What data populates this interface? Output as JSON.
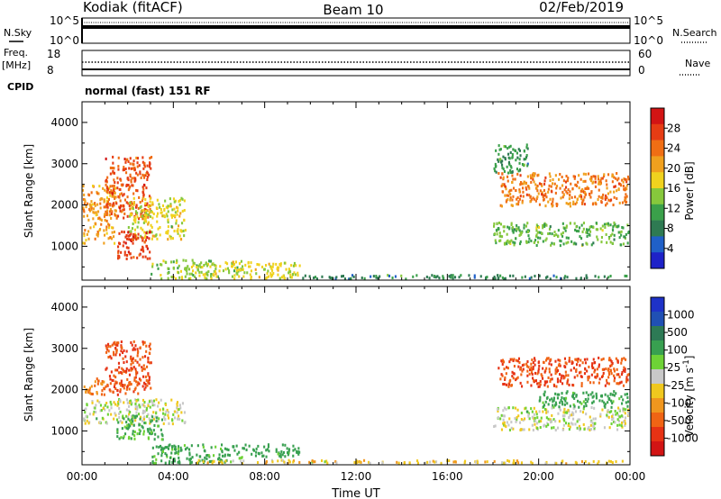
{
  "header": {
    "station": "Kodiak (fitACF)",
    "beam": "Beam 10",
    "date": "02/Feb/2019"
  },
  "noise_panel": {
    "left_label": "N.Sky",
    "right_label": "N.Search",
    "ticks_left": [
      "10^5",
      "10^0"
    ],
    "ticks_right": [
      "10^5",
      "10^0"
    ]
  },
  "freq_panel": {
    "left_label_line1": "Freq.",
    "left_label_line2": "[MHz]",
    "ticks_left": [
      "18",
      "8"
    ],
    "right_label": "Nave",
    "ticks_right": [
      "60",
      "0"
    ],
    "cpid_label": "CPID",
    "cpid_text": "normal (fast) 151 RF"
  },
  "colors": {
    "power": [
      "#1e22c8",
      "#2060c8",
      "#2e7a52",
      "#3aa04a",
      "#86c83c",
      "#f0d21e",
      "#f0a01e",
      "#f06e14",
      "#e63c14",
      "#d21414"
    ],
    "velocity": [
      "#1e32c8",
      "#2050b4",
      "#2d7a55",
      "#38a050",
      "#6ed236",
      "#c8c8c8",
      "#f0c81e",
      "#f0961e",
      "#f06414",
      "#e63214",
      "#d21414"
    ]
  },
  "chart_data": [
    {
      "type": "heatmap",
      "name": "power",
      "ylabel": "Slant Range [km]",
      "ylim": [
        180,
        4500
      ],
      "y_ticks": [
        "1000",
        "2000",
        "3000",
        "4000"
      ],
      "x_ticks": [
        "00:00",
        "04:00",
        "08:00",
        "12:00",
        "16:00",
        "20:00",
        "00:00"
      ],
      "xlim_hours": [
        0,
        24
      ],
      "colorbar_label": "Power [dB]",
      "colorbar_ticks": [
        "28",
        "24",
        "20",
        "16",
        "12",
        "8",
        "4"
      ],
      "colorbar_range": [
        0,
        30
      ],
      "features": [
        {
          "t": [
            0.0,
            1.5
          ],
          "r": [
            1100,
            2500
          ],
          "value": 20
        },
        {
          "t": [
            1.0,
            3.0
          ],
          "r": [
            1700,
            3200
          ],
          "value": 24
        },
        {
          "t": [
            2.0,
            4.5
          ],
          "r": [
            1200,
            2200
          ],
          "value": 16
        },
        {
          "t": [
            1.5,
            3.0
          ],
          "r": [
            700,
            1400
          ],
          "value": 26
        },
        {
          "t": [
            3.0,
            7.0
          ],
          "r": [
            200,
            700
          ],
          "value": 14
        },
        {
          "t": [
            6.5,
            9.5
          ],
          "r": [
            250,
            650
          ],
          "value": 16
        },
        {
          "t": [
            9.5,
            24.0
          ],
          "r": [
            180,
            330
          ],
          "value": 8
        },
        {
          "t": [
            18.2,
            24.0
          ],
          "r": [
            2000,
            2800
          ],
          "value": 22
        },
        {
          "t": [
            18.0,
            24.0
          ],
          "r": [
            1050,
            1600
          ],
          "value": 12
        },
        {
          "t": [
            18.0,
            19.5
          ],
          "r": [
            2800,
            3500
          ],
          "value": 10
        }
      ]
    },
    {
      "type": "heatmap",
      "name": "velocity",
      "ylabel": "Slant Range [km]",
      "ylim": [
        180,
        4500
      ],
      "y_ticks": [
        "1000",
        "2000",
        "3000",
        "4000"
      ],
      "x_ticks": [
        "00:00",
        "04:00",
        "08:00",
        "12:00",
        "16:00",
        "20:00",
        "00:00"
      ],
      "xlim_hours": [
        0,
        24
      ],
      "xlabel": "Time UT",
      "colorbar_label": "Velocity [m s^-1]",
      "colorbar_ticks": [
        "1000",
        "500",
        "100",
        "25",
        "-25",
        "-100",
        "-500",
        "-1000"
      ],
      "features": [
        {
          "t": [
            1.0,
            3.0
          ],
          "r": [
            1900,
            3200
          ],
          "value": -500
        },
        {
          "t": [
            0.0,
            1.0
          ],
          "r": [
            1900,
            2300
          ],
          "value": -300
        },
        {
          "t": [
            0.0,
            4.5
          ],
          "r": [
            1200,
            1800
          ],
          "value": 0
        },
        {
          "t": [
            1.5,
            3.5
          ],
          "r": [
            800,
            1400
          ],
          "value": 120
        },
        {
          "t": [
            3.0,
            7.0
          ],
          "r": [
            200,
            700
          ],
          "value": 150
        },
        {
          "t": [
            7.0,
            9.5
          ],
          "r": [
            400,
            700
          ],
          "value": 150
        },
        {
          "t": [
            5.0,
            24.0
          ],
          "r": [
            180,
            320
          ],
          "value": -60
        },
        {
          "t": [
            18.2,
            24.0
          ],
          "r": [
            2100,
            2800
          ],
          "value": -500
        },
        {
          "t": [
            18.0,
            24.0
          ],
          "r": [
            1050,
            1600
          ],
          "value": 0
        },
        {
          "t": [
            20.0,
            24.0
          ],
          "r": [
            1600,
            2000
          ],
          "value": 150
        }
      ]
    }
  ]
}
